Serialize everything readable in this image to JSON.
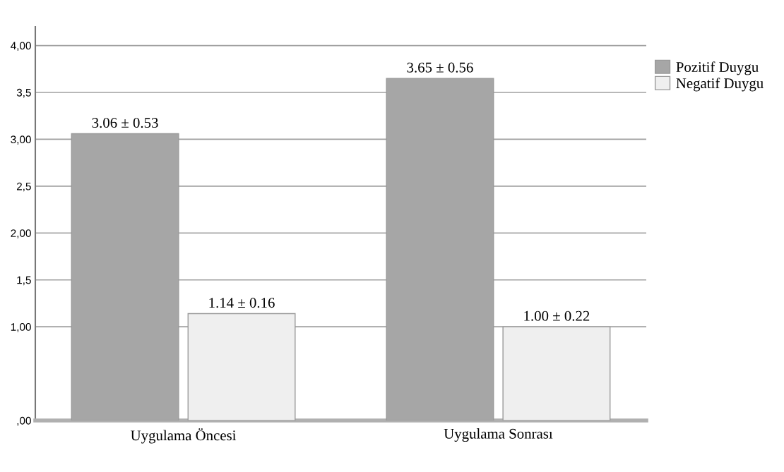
{
  "chart_data": {
    "type": "bar",
    "categories": [
      "Uygulama Öncesi",
      "Uygulama Sonrası"
    ],
    "series": [
      {
        "name": "Pozitif Duygu",
        "color": "#a6a6a6",
        "values": [
          3.06,
          3.65
        ],
        "value_labels": [
          "3.06 ± 0.53",
          "3.65 ± 0.56"
        ]
      },
      {
        "name": "Negatif Duygu",
        "color": "#efefef",
        "values": [
          1.14,
          1.0
        ],
        "value_labels": [
          "1.14 ± 0.16",
          "1.00 ± 0.22"
        ]
      }
    ],
    "ylim": [
      0,
      4.2
    ],
    "yticks": [
      {
        "value": 0,
        "label": ",00"
      },
      {
        "value": 1,
        "label": "1,00"
      },
      {
        "value": 1.5,
        "label": "1,5"
      },
      {
        "value": 2,
        "label": "2,00"
      },
      {
        "value": 2.5,
        "label": "2,5"
      },
      {
        "value": 3,
        "label": "3,00"
      },
      {
        "value": 3.5,
        "label": "3,5"
      },
      {
        "value": 4,
        "label": "4,00"
      }
    ],
    "grid": "y",
    "legend": "top right"
  }
}
